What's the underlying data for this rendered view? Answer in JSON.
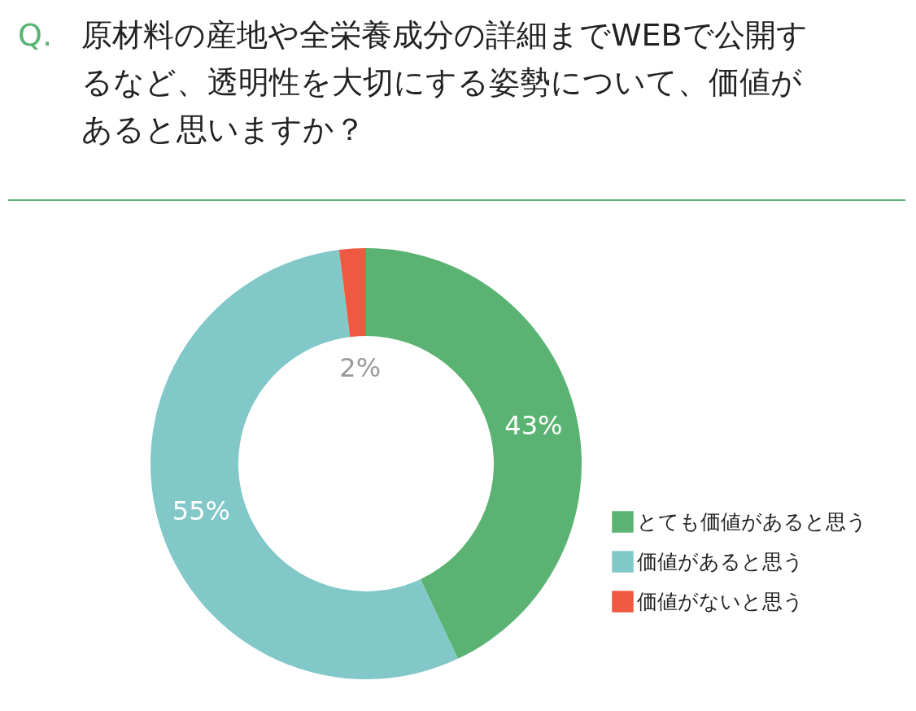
{
  "chart_data": {
    "type": "donut",
    "title": "Q. 原材料の産地や全栄養成分の詳細までWEBで公開するなど、透明性を大切にする姿勢について、価値があると思いますか？",
    "categories": [
      "とても価値があると思う",
      "価値があると思う",
      "価値がないと思う"
    ],
    "values": [
      43,
      55,
      2
    ],
    "colors": [
      "#5bb373",
      "#82c8c9",
      "#ee5a41"
    ],
    "value_labels": [
      "43%",
      "55%",
      "2%"
    ],
    "legend": "bottom right"
  }
}
